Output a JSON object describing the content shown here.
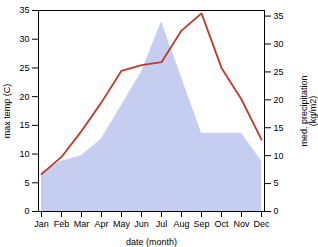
{
  "chart_data": {
    "type": "line",
    "xlabel": "date (month)",
    "ylabel": "max temp (C)",
    "y2label": "med. precipitation\n(kg/m2)",
    "categories": [
      "Jan",
      "Feb",
      "Mar",
      "Apr",
      "May",
      "Jun",
      "Jul",
      "Aug",
      "Sep",
      "Oct",
      "Nov",
      "Dec"
    ],
    "series": [
      {
        "type": "area",
        "axis": "y2",
        "color": "#c5cef0",
        "values": [
          7.0,
          9.0,
          10.0,
          13.0,
          19.0,
          25.0,
          34.0,
          24.0,
          14.0,
          14.0,
          14.0,
          9.0
        ]
      },
      {
        "type": "line",
        "color": "#c0392b",
        "values": [
          6.5,
          9.5,
          14.0,
          19.0,
          24.5,
          25.5,
          26.0,
          31.5,
          34.5,
          25.0,
          19.5,
          12.5
        ]
      }
    ],
    "ylim": [
      0,
      35
    ],
    "yticks": [
      0,
      5,
      10,
      15,
      20,
      25,
      30,
      35
    ],
    "y2lim": [
      0,
      36
    ],
    "y2ticks": [
      0,
      5,
      10,
      15,
      20,
      25,
      30,
      35
    ],
    "grid": false
  }
}
